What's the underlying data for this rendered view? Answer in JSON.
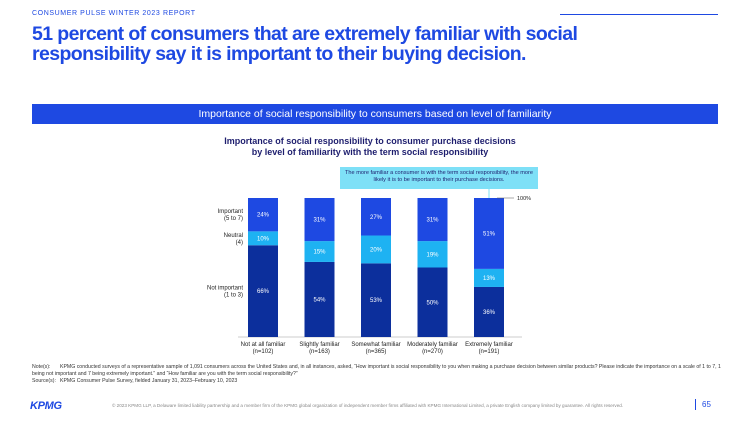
{
  "report": {
    "kicker": "CONSUMER PULSE WINTER 2023 REPORT",
    "page": "65"
  },
  "headline": "51 percent of consumers that are extremely familiar with social responsibility say it is important to their buying decision.",
  "banner": "Importance of social responsibility to consumers based on level of familiarity",
  "callout": "The more familiar a consumer is with the term social responsibility, the more likely it is to be important to their purchase decisions.",
  "notes": {
    "note_label": "Note(s):",
    "note_text": "KPMG conducted surveys of a representative sample of 1,091 consumers across the United States and, in all instances, asked, “How important is social responsibility to you when making a purchase decision between similar products? Please indicate the importance on a scale of 1 to 7, 1 being not important and 7 being extremely important.” and “How familiar are you with the term social responsibility?”",
    "source_label": "Source(s):",
    "source_text": "KPMG Consumer Pulse Survey, fielded January 31, 2023–February 10, 2023"
  },
  "footer": {
    "logo": "KPMG",
    "copyright": "© 2023 KPMG LLP, a Delaware limited liability partnership and a member firm of the KPMG global organization of independent member firms affiliated with KPMG International Limited, a private English company limited by guarantee. All rights reserved."
  },
  "colors": {
    "important": "#1e49e2",
    "neutral": "#1eb2f2",
    "not_important": "#0c2f9c",
    "accent": "#1e49e2",
    "callout": "#7ee0f7"
  },
  "chart_data": {
    "type": "bar",
    "stacked": true,
    "title_line1": "Importance of social responsibility to consumer purchase decisions",
    "title_line2": "by level of familiarity with the term social responsibility",
    "categories": [
      [
        "Not at all familiar",
        "(n=102)"
      ],
      [
        "Slightly familiar",
        "(n=163)"
      ],
      [
        "Somewhat familiar",
        "(n=365)"
      ],
      [
        "Moderately familiar",
        "(n=270)"
      ],
      [
        "Extremely familiar",
        "(n=191)"
      ]
    ],
    "series": [
      {
        "name": "Not important (1 to 3)",
        "label_lines": [
          "Not important",
          "(1 to 3)"
        ],
        "values": [
          66,
          54,
          53,
          50,
          36
        ]
      },
      {
        "name": "Neutral (4)",
        "label_lines": [
          "Neutral",
          "(4)"
        ],
        "values": [
          10,
          15,
          20,
          19,
          13
        ]
      },
      {
        "name": "Important (5 to 7)",
        "label_lines": [
          "Important",
          "(5 to 7)"
        ],
        "values": [
          24,
          31,
          27,
          31,
          51
        ]
      }
    ],
    "value_suffix": "%",
    "ylim": [
      0,
      100
    ],
    "ref_label": "100%"
  }
}
